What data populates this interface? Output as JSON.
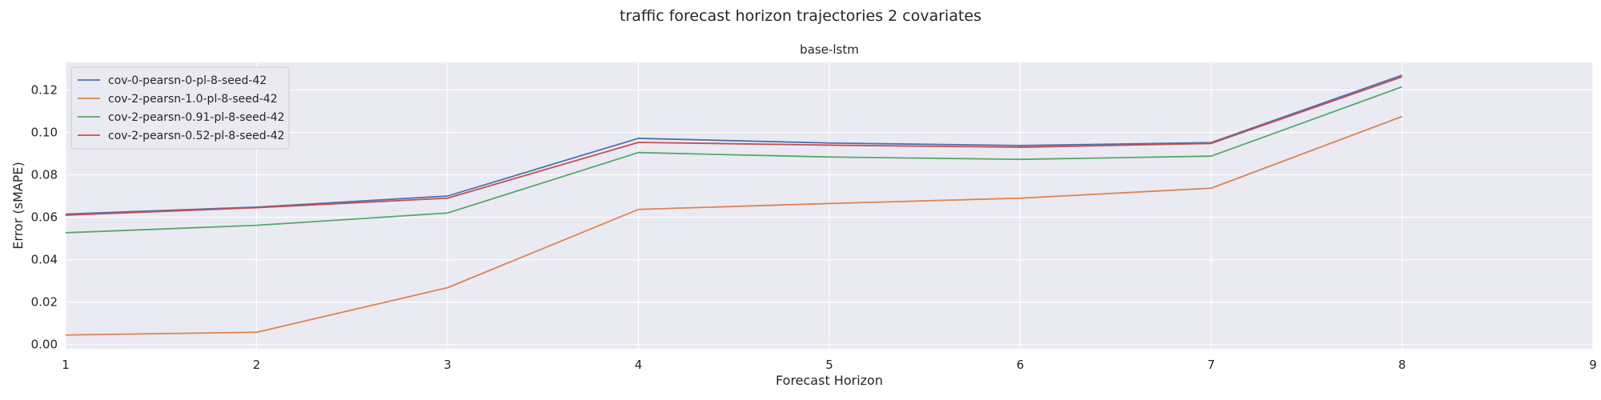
{
  "chart_data": {
    "type": "line",
    "suptitle": "traffic forecast horizon trajectories 2 covariates",
    "title": "base-lstm",
    "xlabel": "Forecast Horizon",
    "ylabel": "Error (sMAPE)",
    "xlim": [
      1,
      9
    ],
    "ylim": [
      -0.002,
      0.133
    ],
    "xticks": [
      1,
      2,
      3,
      4,
      5,
      6,
      7,
      8,
      9
    ],
    "yticks": [
      0.0,
      0.02,
      0.04,
      0.06,
      0.08,
      0.1,
      0.12
    ],
    "grid": true,
    "legend_position": "top-left",
    "x": [
      1,
      2,
      3,
      4,
      5,
      6,
      7,
      8
    ],
    "series": [
      {
        "name": "cov-0-pearsn-0-pl-8-seed-42",
        "color": "#4c72b0",
        "values": [
          0.0615,
          0.0648,
          0.07,
          0.0972,
          0.095,
          0.0938,
          0.0952,
          0.127
        ]
      },
      {
        "name": "cov-2-pearsn-1.0-pl-8-seed-42",
        "color": "#dd8452",
        "values": [
          0.0045,
          0.0058,
          0.0268,
          0.0637,
          0.0665,
          0.069,
          0.0737,
          0.1075
        ]
      },
      {
        "name": "cov-2-pearsn-0.91-pl-8-seed-42",
        "color": "#55a868",
        "values": [
          0.0527,
          0.0562,
          0.062,
          0.0905,
          0.0884,
          0.0873,
          0.0888,
          0.1215
        ]
      },
      {
        "name": "cov-2-pearsn-0.52-pl-8-seed-42",
        "color": "#c44e52",
        "values": [
          0.061,
          0.0645,
          0.069,
          0.0953,
          0.094,
          0.093,
          0.0948,
          0.1262
        ]
      }
    ]
  }
}
